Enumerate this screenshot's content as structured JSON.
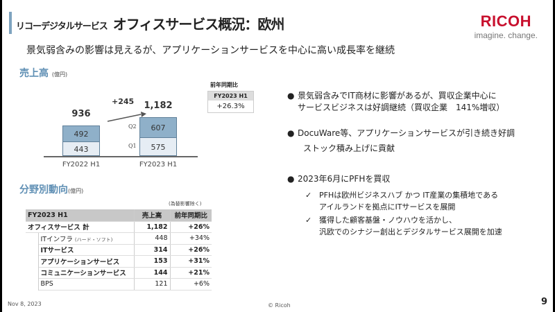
{
  "header": {
    "subtitle_label": "リコーデジタルサービス",
    "title": "オフィスサービス概況：欧州",
    "logo_text": "RICOH",
    "logo_tagline": "imagine. change."
  },
  "lead": "景気弱含みの影響は見えるが、アプリケーションサービスを中心に高い成長率を継続",
  "sales_section": {
    "title": "売上高",
    "unit": "(億円)"
  },
  "chart_data": {
    "type": "bar",
    "stacked": true,
    "categories": [
      "FY2022 H1",
      "FY2023 H1"
    ],
    "series": [
      {
        "name": "Q1",
        "values": [
          443,
          575
        ]
      },
      {
        "name": "Q2",
        "values": [
          492,
          607
        ]
      }
    ],
    "totals": [
      "936",
      "1,182"
    ],
    "increase": "+245",
    "series_labels": [
      "Q1",
      "Q2"
    ],
    "ylabel": "億円"
  },
  "yoy": {
    "title": "前年同期比",
    "period": "FY2023 H1",
    "value": "+26.3%"
  },
  "segment": {
    "title": "分野別動向",
    "unit": "(億円)",
    "note": "(為替影響除く)",
    "headers": [
      "FY2023 H1",
      "売上高",
      "前年同期比"
    ],
    "total": {
      "name": "オフィスサービス 計",
      "sales": "1,182",
      "yoy": "+26%"
    },
    "rows": [
      {
        "name": "ITインフラ",
        "sub": "(ハード・ソフト)",
        "sales": "448",
        "yoy": "+34%"
      },
      {
        "name": "ITサービス",
        "sub": "",
        "sales": "314",
        "yoy": "+26%"
      },
      {
        "name": "アプリケーションサービス",
        "sub": "",
        "sales": "153",
        "yoy": "+31%"
      },
      {
        "name": "コミュニケーションサービス",
        "sub": "",
        "sales": "144",
        "yoy": "+21%"
      },
      {
        "name": "BPS",
        "sub": "",
        "sales": "121",
        "yoy": "+6%"
      }
    ]
  },
  "bullets": [
    {
      "lines": [
        "景気弱含みでIT商材に影響があるが、買収企業中心に",
        "サービスビジネスは好調継続（買収企業　141%増収）"
      ]
    },
    {
      "lines": [
        "DocuWare等、アプリケーションサービスが引き続き好調",
        "ストック積み上げに貢献"
      ]
    },
    {
      "lines": [
        "2023年6月にPFHを買収"
      ]
    }
  ],
  "checks": [
    {
      "lines": [
        "PFHは欧州ビジネスハブ かつ IT産業の集積地である",
        "アイルランドを拠点にITサービスを展開"
      ]
    },
    {
      "lines": [
        "獲得した顧客基盤・ノウハウを活かし、",
        "汎欧でのシナジー創出とデジタルサービス展開を加速"
      ]
    }
  ],
  "footer": {
    "date": "Nov 8, 2023",
    "copyright": "© Ricoh",
    "page": "9"
  },
  "colors": {
    "accent": "#5f8fb4",
    "q2": "#8fb0c9",
    "q1": "#e6edf4",
    "brand": "#c8102e"
  }
}
